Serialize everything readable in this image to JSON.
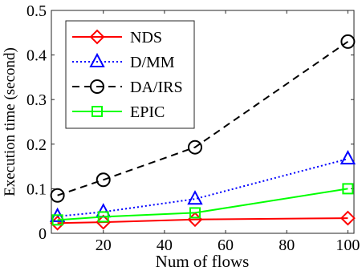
{
  "chart_data": {
    "type": "line",
    "xlabel": "Num of flows",
    "ylabel": "Execution time (second)",
    "xlim": [
      3,
      102
    ],
    "ylim": [
      0,
      0.5
    ],
    "xticks": [
      20,
      40,
      60,
      80,
      100
    ],
    "yticks": [
      0,
      0.1,
      0.2,
      0.3,
      0.4,
      0.5
    ],
    "xtick_labels": [
      "20",
      "40",
      "60",
      "80",
      "100"
    ],
    "ytick_labels": [
      "0",
      "0.1",
      "0.2",
      "0.3",
      "0.4",
      "0.5"
    ],
    "legend_position": "top-left",
    "grid": false,
    "x": [
      5,
      20,
      50,
      100
    ],
    "series": [
      {
        "name": "NDS",
        "values": [
          0.023,
          0.025,
          0.031,
          0.034
        ],
        "color": "#ff0000",
        "line": "solid",
        "marker": "diamond"
      },
      {
        "name": "D/MM",
        "values": [
          0.038,
          0.048,
          0.077,
          0.167
        ],
        "color": "#0000ff",
        "line": "dotted",
        "marker": "triangle"
      },
      {
        "name": "DA/IRS",
        "values": [
          0.085,
          0.12,
          0.193,
          0.43
        ],
        "color": "#000000",
        "line": "dashed",
        "marker": "circle"
      },
      {
        "name": "EPIC",
        "values": [
          0.03,
          0.037,
          0.046,
          0.1
        ],
        "color": "#00ff00",
        "line": "solid",
        "marker": "square"
      }
    ]
  }
}
